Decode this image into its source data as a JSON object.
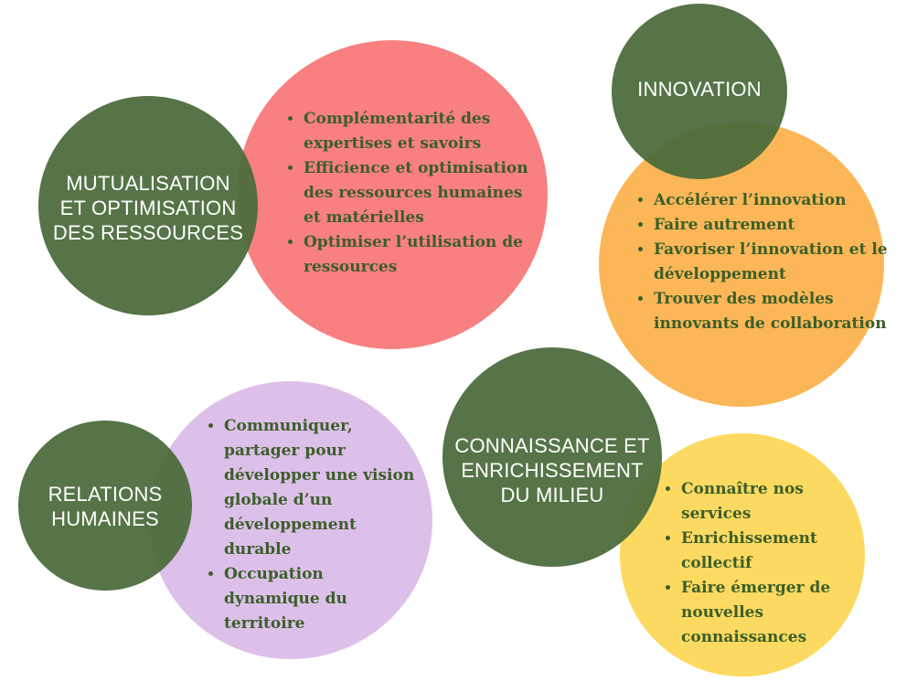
{
  "colors": {
    "green": "#4b6b3b",
    "red": "#f88080",
    "orange": "#fbb757",
    "yellow": "#fcd960",
    "lavender": "#ddc0e9",
    "text_green": "#3b5e29"
  },
  "groups": [
    {
      "title_lines": [
        "MUTUALISATION",
        "ET OPTIMISATION",
        "DES RESSOURCES"
      ],
      "items": [
        "Complémentarité des expertises et savoirs",
        "Efficience et optimisation des ressources humaines et matérielles",
        "Optimiser l’utilisation de ressources"
      ]
    },
    {
      "title_lines": [
        "INNOVATION"
      ],
      "items": [
        "Accélérer l’innovation",
        "Faire autrement",
        "Favoriser l’innovation et le développement",
        "Trouver des modèles innovants de collaboration"
      ]
    },
    {
      "title_lines": [
        "RELATIONS",
        "HUMAINES"
      ],
      "items": [
        "Communiquer, partager pour développer une vision globale d’un développement durable",
        "Occupation dynamique du territoire"
      ]
    },
    {
      "title_lines": [
        "CONNAISSANCE ET",
        "ENRICHISSEMENT",
        "DU MILIEU"
      ],
      "items": [
        "Connaître nos services",
        "Enrichissement collectif",
        "Faire émerger de nouvelles connaissances"
      ]
    }
  ]
}
